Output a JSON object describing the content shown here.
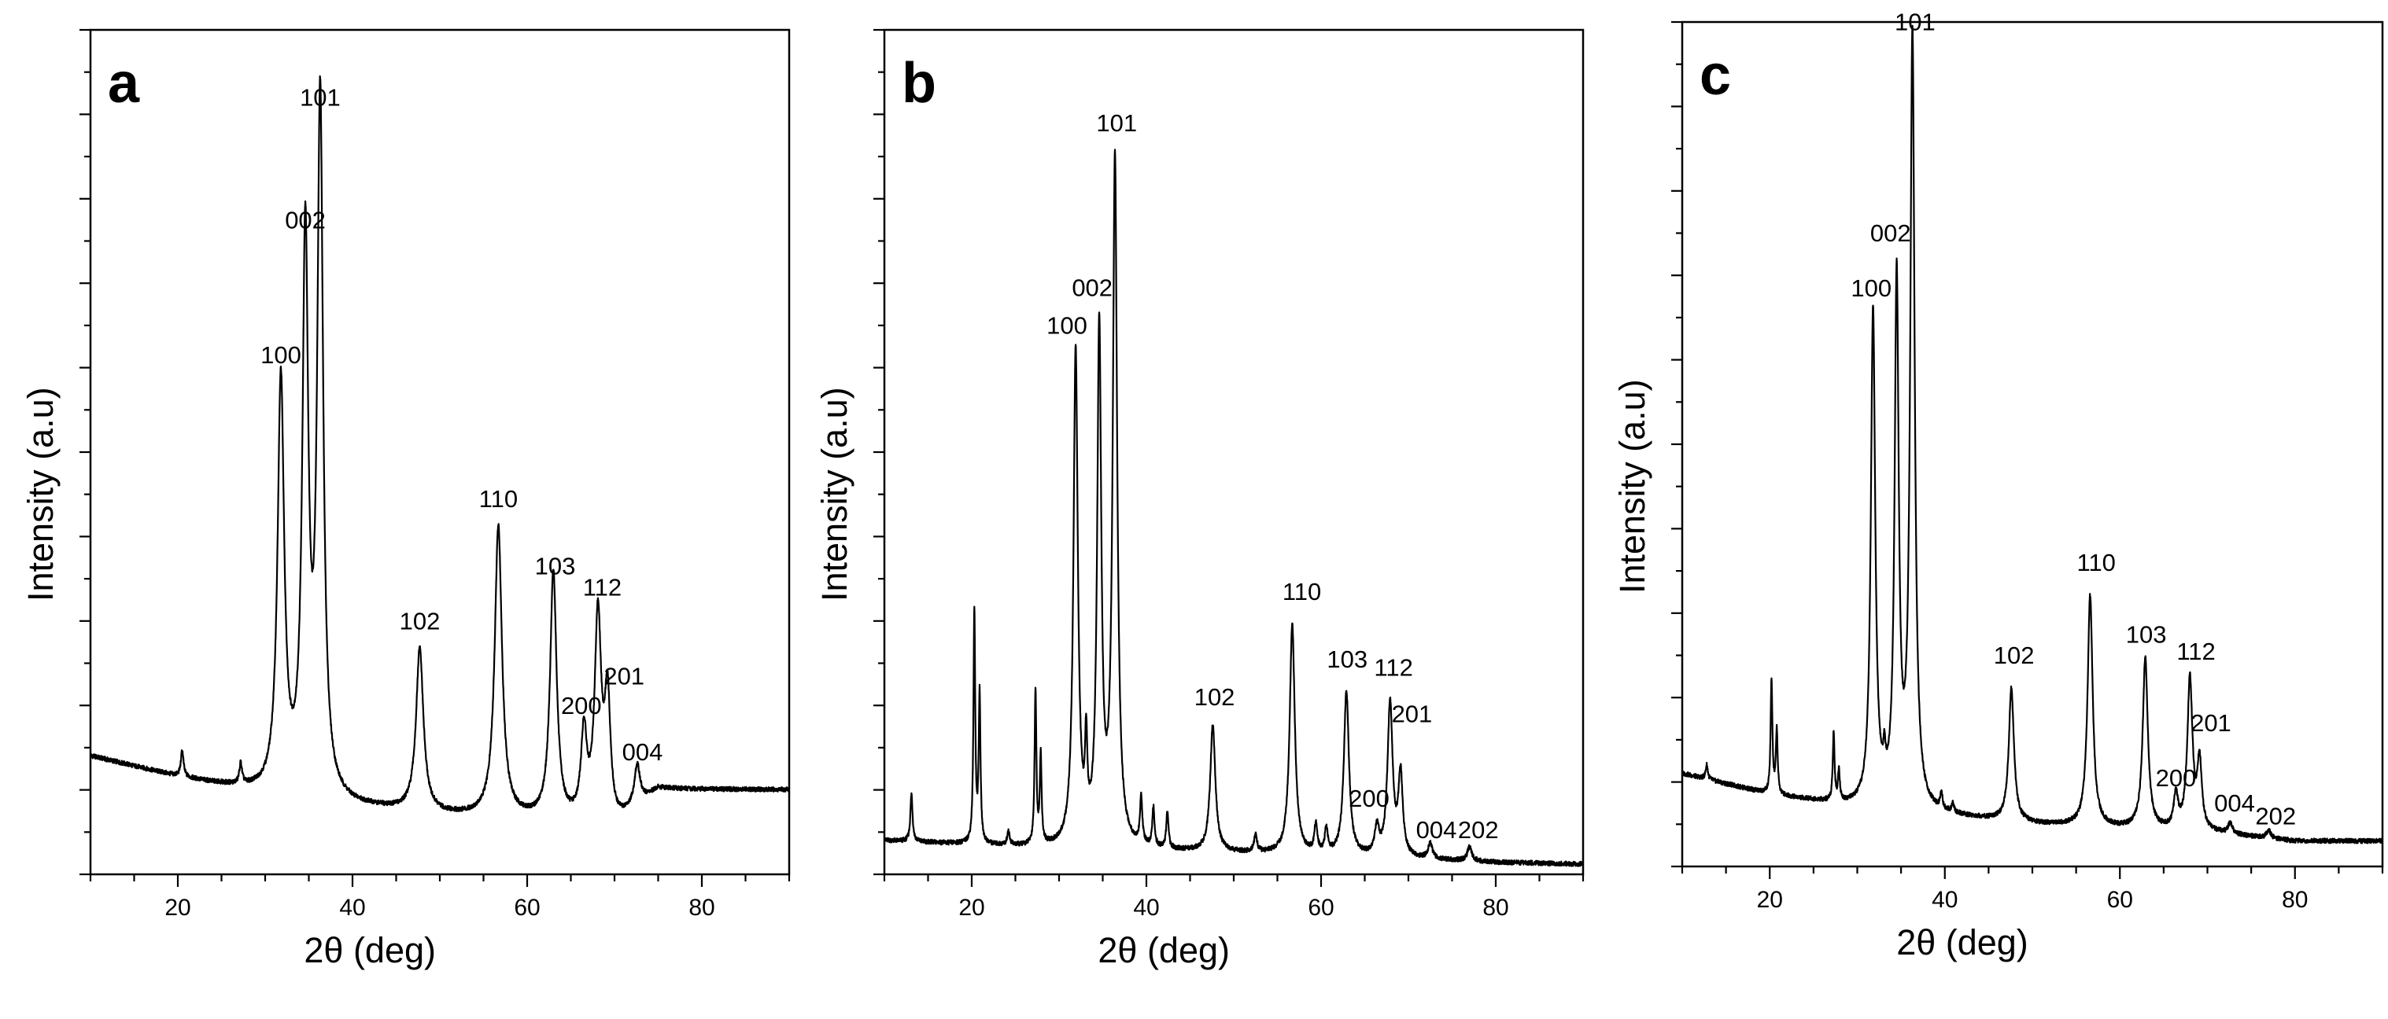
{
  "chart_data": [
    {
      "type": "line",
      "panel_label": "a",
      "xlabel": "2θ (deg)",
      "ylabel": "Intensity (a.u)",
      "xlim": [
        10,
        90
      ],
      "ylim": [
        0,
        100
      ],
      "xticks": [
        20,
        40,
        60,
        80
      ],
      "baseline": [
        [
          10,
          14
        ],
        [
          20,
          11.5
        ],
        [
          30,
          9.5
        ],
        [
          40,
          8
        ],
        [
          50,
          7
        ],
        [
          60,
          6.5
        ],
        [
          70,
          5.5
        ],
        [
          75,
          10
        ],
        [
          90,
          10
        ]
      ],
      "peaks": [
        {
          "x": 20.5,
          "y": 14.5,
          "w": 0.18
        },
        {
          "x": 27.2,
          "y": 12.5,
          "w": 0.18
        },
        {
          "x": 31.8,
          "y": 58,
          "w": 0.45
        },
        {
          "x": 34.6,
          "y": 74,
          "w": 0.4
        },
        {
          "x": 36.3,
          "y": 90.5,
          "w": 0.4
        },
        {
          "x": 47.7,
          "y": 26.5,
          "w": 0.5
        },
        {
          "x": 56.7,
          "y": 41,
          "w": 0.5
        },
        {
          "x": 63.0,
          "y": 35.5,
          "w": 0.45
        },
        {
          "x": 66.5,
          "y": 16,
          "w": 0.4
        },
        {
          "x": 68.1,
          "y": 30,
          "w": 0.45
        },
        {
          "x": 69.2,
          "y": 20,
          "w": 0.4
        },
        {
          "x": 72.6,
          "y": 12.5,
          "w": 0.4
        }
      ],
      "annotations": [
        {
          "text": "100",
          "x": 31.8,
          "y": 60.5
        },
        {
          "text": "002",
          "x": 34.6,
          "y": 76.5
        },
        {
          "text": "101",
          "x": 36.3,
          "y": 91
        },
        {
          "text": "102",
          "x": 47.7,
          "y": 29
        },
        {
          "text": "110",
          "x": 56.7,
          "y": 43.5
        },
        {
          "text": "103",
          "x": 63.2,
          "y": 35.5
        },
        {
          "text": "112",
          "x": 68.6,
          "y": 33
        },
        {
          "text": "200",
          "x": 66.2,
          "y": 19
        },
        {
          "text": "201",
          "x": 71.1,
          "y": 22.5
        },
        {
          "text": "004",
          "x": 73.2,
          "y": 13.5
        }
      ]
    },
    {
      "type": "line",
      "panel_label": "b",
      "xlabel": "2θ (deg)",
      "ylabel": "Intensity (a.u)",
      "xlim": [
        10,
        90
      ],
      "ylim": [
        0,
        100
      ],
      "xticks": [
        20,
        40,
        60,
        80
      ],
      "baseline": [
        [
          10,
          4
        ],
        [
          20,
          3.5
        ],
        [
          30,
          3
        ],
        [
          40,
          2.8
        ],
        [
          50,
          2.5
        ],
        [
          60,
          2.2
        ],
        [
          70,
          1.8
        ],
        [
          80,
          1.4
        ],
        [
          90,
          1.2
        ]
      ],
      "peaks": [
        {
          "x": 13.1,
          "y": 9.5,
          "w": 0.15
        },
        {
          "x": 20.3,
          "y": 31,
          "w": 0.12
        },
        {
          "x": 20.9,
          "y": 21,
          "w": 0.12
        },
        {
          "x": 24.2,
          "y": 5,
          "w": 0.15
        },
        {
          "x": 27.3,
          "y": 21.5,
          "w": 0.12
        },
        {
          "x": 27.9,
          "y": 13.5,
          "w": 0.12
        },
        {
          "x": 31.9,
          "y": 61.5,
          "w": 0.3
        },
        {
          "x": 33.1,
          "y": 13,
          "w": 0.15
        },
        {
          "x": 34.6,
          "y": 63.5,
          "w": 0.28
        },
        {
          "x": 36.4,
          "y": 84,
          "w": 0.3
        },
        {
          "x": 39.4,
          "y": 8.5,
          "w": 0.15
        },
        {
          "x": 40.8,
          "y": 7.5,
          "w": 0.15
        },
        {
          "x": 42.4,
          "y": 7,
          "w": 0.15
        },
        {
          "x": 47.6,
          "y": 17.5,
          "w": 0.35
        },
        {
          "x": 52.5,
          "y": 4.5,
          "w": 0.2
        },
        {
          "x": 56.7,
          "y": 29.5,
          "w": 0.35
        },
        {
          "x": 59.4,
          "y": 5.5,
          "w": 0.2
        },
        {
          "x": 60.6,
          "y": 5,
          "w": 0.2
        },
        {
          "x": 62.9,
          "y": 21.5,
          "w": 0.35
        },
        {
          "x": 66.4,
          "y": 5,
          "w": 0.3
        },
        {
          "x": 67.9,
          "y": 20,
          "w": 0.35
        },
        {
          "x": 69.1,
          "y": 11.5,
          "w": 0.3
        },
        {
          "x": 72.5,
          "y": 3.5,
          "w": 0.3
        },
        {
          "x": 77.0,
          "y": 3.2,
          "w": 0.3
        }
      ],
      "annotations": [
        {
          "text": "100",
          "x": 30.9,
          "y": 64
        },
        {
          "text": "002",
          "x": 33.8,
          "y": 68.5
        },
        {
          "text": "101",
          "x": 36.6,
          "y": 88
        },
        {
          "text": "102",
          "x": 47.8,
          "y": 20
        },
        {
          "text": "110",
          "x": 57.8,
          "y": 32.5
        },
        {
          "text": "103",
          "x": 63.0,
          "y": 24.5
        },
        {
          "text": "112",
          "x": 68.3,
          "y": 23.5
        },
        {
          "text": "200",
          "x": 65.5,
          "y": 8
        },
        {
          "text": "201",
          "x": 70.4,
          "y": 18
        },
        {
          "text": "004",
          "x": 73.2,
          "y": 4.3
        },
        {
          "text": "202",
          "x": 78.0,
          "y": 4.3
        }
      ]
    },
    {
      "type": "line",
      "panel_label": "c",
      "xlabel": "2θ (deg)",
      "ylabel": "Intensity (a.u)",
      "xlim": [
        10,
        90
      ],
      "ylim": [
        0,
        100
      ],
      "xticks": [
        20,
        40,
        60,
        80
      ],
      "baseline": [
        [
          10,
          11
        ],
        [
          20,
          8.5
        ],
        [
          30,
          7
        ],
        [
          40,
          6
        ],
        [
          50,
          5
        ],
        [
          60,
          4.5
        ],
        [
          70,
          4
        ],
        [
          80,
          3
        ],
        [
          90,
          3
        ]
      ],
      "peaks": [
        {
          "x": 12.8,
          "y": 12,
          "w": 0.15
        },
        {
          "x": 20.2,
          "y": 22,
          "w": 0.12
        },
        {
          "x": 20.8,
          "y": 16,
          "w": 0.12
        },
        {
          "x": 27.3,
          "y": 15.5,
          "w": 0.12
        },
        {
          "x": 27.9,
          "y": 11,
          "w": 0.12
        },
        {
          "x": 31.8,
          "y": 65.5,
          "w": 0.3
        },
        {
          "x": 33.1,
          "y": 10,
          "w": 0.15
        },
        {
          "x": 34.5,
          "y": 68.5,
          "w": 0.28
        },
        {
          "x": 36.3,
          "y": 98,
          "w": 0.3
        },
        {
          "x": 39.6,
          "y": 8,
          "w": 0.15
        },
        {
          "x": 40.9,
          "y": 7,
          "w": 0.15
        },
        {
          "x": 47.6,
          "y": 21,
          "w": 0.35
        },
        {
          "x": 56.6,
          "y": 32,
          "w": 0.35
        },
        {
          "x": 62.9,
          "y": 24.5,
          "w": 0.35
        },
        {
          "x": 66.4,
          "y": 8,
          "w": 0.3
        },
        {
          "x": 68.0,
          "y": 22,
          "w": 0.35
        },
        {
          "x": 69.1,
          "y": 12,
          "w": 0.3
        },
        {
          "x": 72.6,
          "y": 5,
          "w": 0.3
        },
        {
          "x": 77.0,
          "y": 4.2,
          "w": 0.3
        }
      ],
      "annotations": [
        {
          "text": "100",
          "x": 31.6,
          "y": 67.5
        },
        {
          "text": "002",
          "x": 33.8,
          "y": 74
        },
        {
          "text": "101",
          "x": 36.6,
          "y": 99
        },
        {
          "text": "102",
          "x": 47.9,
          "y": 24
        },
        {
          "text": "110",
          "x": 57.3,
          "y": 35
        },
        {
          "text": "103",
          "x": 63.0,
          "y": 26.5
        },
        {
          "text": "112",
          "x": 68.7,
          "y": 24.5
        },
        {
          "text": "200",
          "x": 66.4,
          "y": 9.5
        },
        {
          "text": "201",
          "x": 70.4,
          "y": 16
        },
        {
          "text": "004",
          "x": 73.1,
          "y": 6.5
        },
        {
          "text": "202",
          "x": 77.8,
          "y": 5
        }
      ]
    }
  ]
}
